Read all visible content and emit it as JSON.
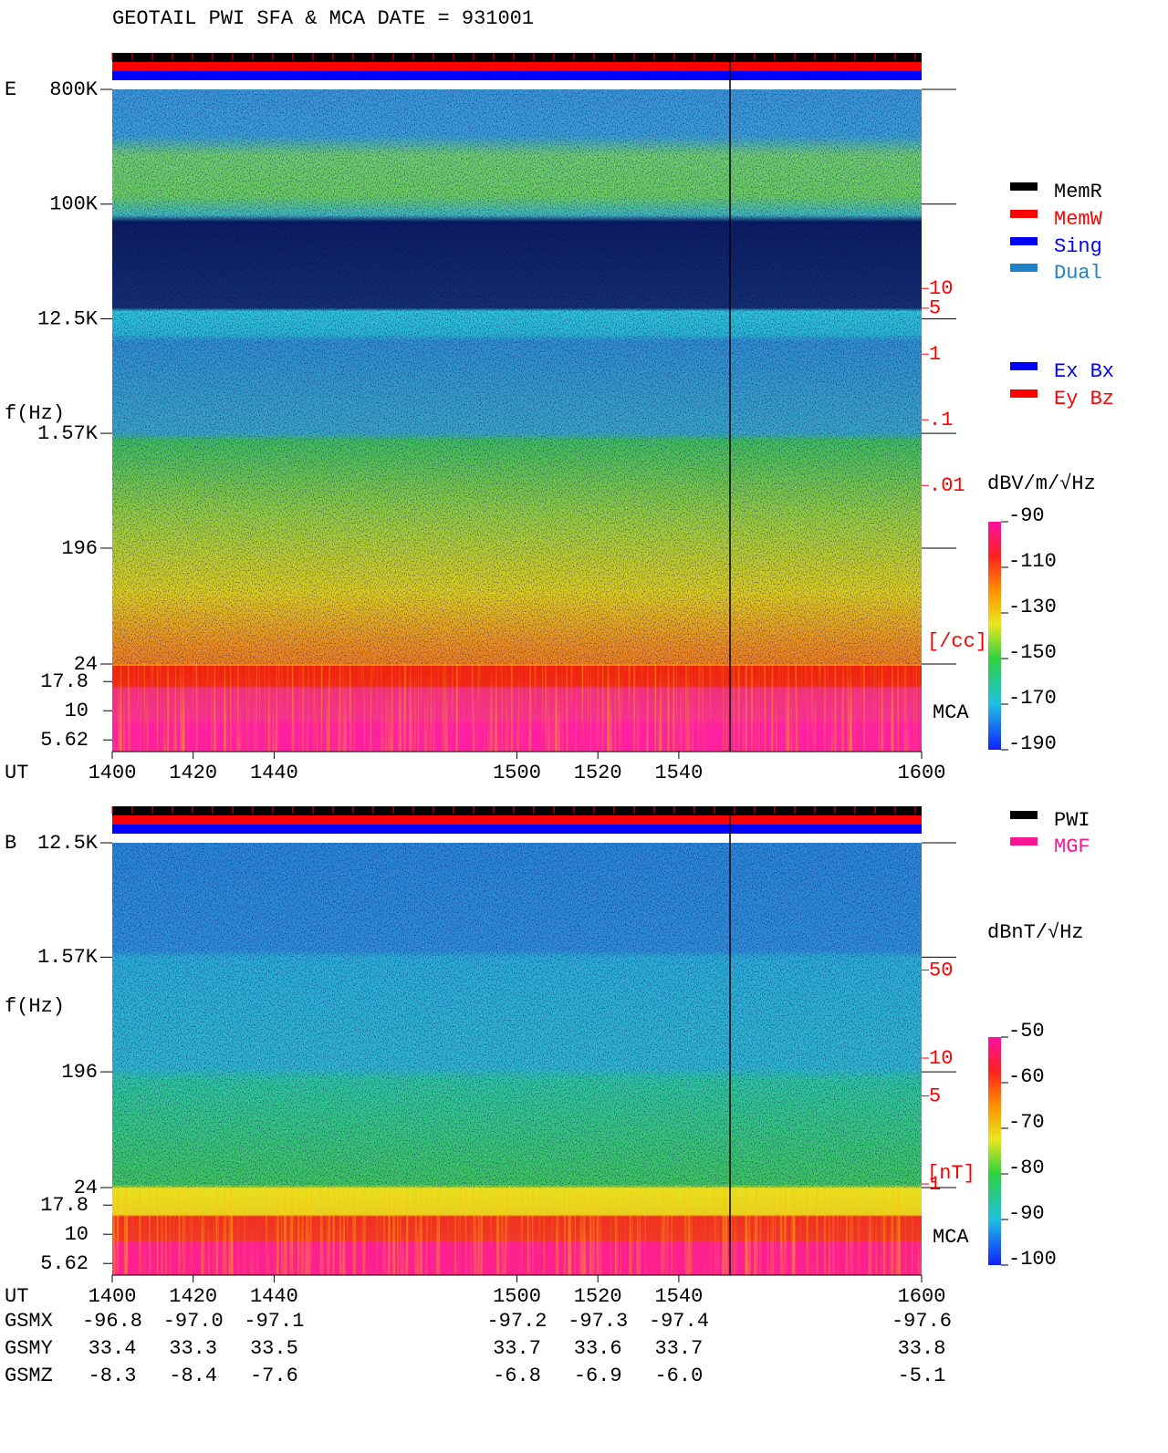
{
  "chart_data": [
    {
      "type": "spectrogram",
      "title": "GEOTAIL  PWI SFA & MCA   DATE = 931001",
      "component": "E",
      "ylabel": "f(Hz)",
      "xlabel": "UT",
      "log_y": true,
      "xlim": [
        1400,
        1600
      ],
      "xticks": [
        1400,
        1420,
        1440,
        1500,
        1520,
        1540,
        1600
      ],
      "ylim": [
        24,
        800000
      ],
      "yticks": [
        {
          "value": 800000,
          "label": "800K"
        },
        {
          "value": 100000,
          "label": "100K"
        },
        {
          "value": 12500,
          "label": "12.5K"
        },
        {
          "value": 1570,
          "label": "1.57K"
        },
        196,
        24
      ],
      "mca_label": "MCA",
      "mca_channels": [
        "17.8",
        "10",
        "5.62"
      ],
      "y2lim": [
        1.91e-05,
        10720
      ],
      "y2_color": "#ff0000",
      "y2ticks": [
        10,
        5,
        1,
        {
          "value": 0.1,
          "label": ".1"
        },
        {
          "value": 0.01,
          "label": ".01"
        }
      ],
      "y2_unit": "[/cc]",
      "colorbar": {
        "label": "dBV/m/√Hz",
        "lim": [
          -190,
          -90
        ],
        "ticks": [
          -90,
          -110,
          -130,
          -150,
          -170,
          -190
        ]
      },
      "legend": [
        [
          {
            "name": "MemR",
            "color": "#000000"
          },
          {
            "name": "MemW",
            "color": "#ff0000"
          },
          {
            "name": "Sing",
            "color": "#0000ff"
          },
          {
            "name": "Dual",
            "color": "#2080c8"
          }
        ],
        [
          {
            "name": "Ex Bx",
            "color": "#0000ff"
          },
          {
            "name": "Ey Bz",
            "color": "#ff0000"
          }
        ]
      ]
    },
    {
      "type": "spectrogram",
      "component": "B",
      "ylabel": "f(Hz)",
      "xlabel": "UT",
      "log_y": true,
      "xlim": [
        1400,
        1600
      ],
      "xticks": [
        1400,
        1420,
        1440,
        1500,
        1520,
        1540,
        1600
      ],
      "ylim": [
        24,
        12500
      ],
      "yticks": [
        {
          "value": 12500,
          "label": "12.5K"
        },
        {
          "value": 1570,
          "label": "1.57K"
        },
        196,
        24
      ],
      "mca_label": "MCA",
      "mca_channels": [
        "17.8",
        "10",
        "5.62"
      ],
      "y2lim": [
        0.936,
        513
      ],
      "y2_color": "#ff0000",
      "y2ticks": [
        50,
        10,
        5,
        1
      ],
      "y2_unit": "[nT]",
      "colorbar": {
        "label": "dBnT/√Hz",
        "lim": [
          -100,
          -50
        ],
        "ticks": [
          -50,
          -60,
          -70,
          -80,
          -90,
          -100
        ]
      },
      "legend": [
        [
          {
            "name": "PWI",
            "color": "#000000"
          },
          {
            "name": "MGF",
            "color": "#ff1493"
          }
        ]
      ]
    }
  ],
  "orbit": {
    "rows": [
      {
        "name": "GSMX",
        "values": [
          "-96.8",
          "-97.0",
          "-97.1",
          "-97.2",
          "-97.3",
          "-97.4",
          "-97.6"
        ]
      },
      {
        "name": "GSMY",
        "values": [
          "33.4",
          "33.3",
          "33.5",
          "33.7",
          "33.6",
          "33.7",
          "33.8"
        ]
      },
      {
        "name": "GSMZ",
        "values": [
          "-8.3",
          "-8.4",
          "-7.6",
          "-6.8",
          "-6.9",
          "-6.0",
          "-5.1"
        ]
      }
    ]
  }
}
